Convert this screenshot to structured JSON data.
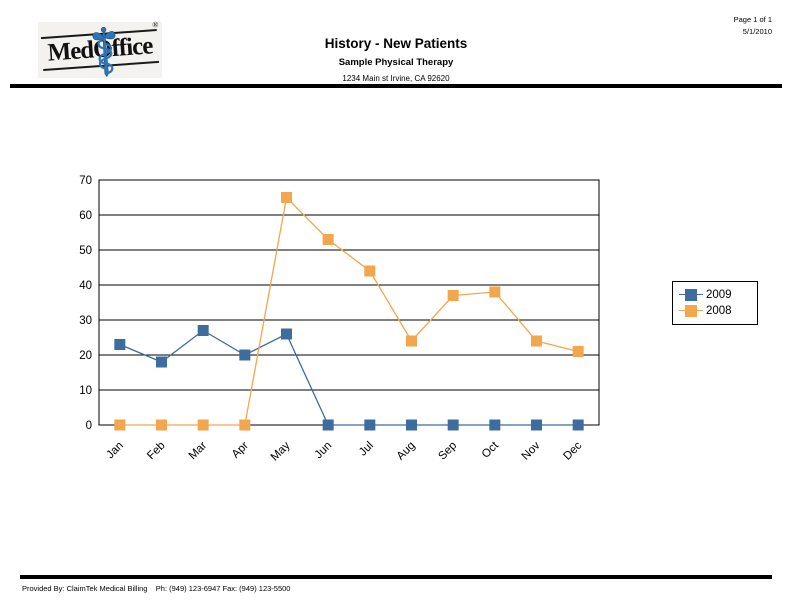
{
  "header": {
    "logo_text": "MedOffice",
    "logo_reg": "®",
    "title": "History - New Patients",
    "subtitle": "Sample Physical Therapy",
    "address": "1234 Main st Irvine, CA  92620"
  },
  "page_info": {
    "page_label": "Page 1 of 1",
    "date": "5/1/2010"
  },
  "footer": {
    "text": "Provided By: ClaimTek Medical Billing    Ph: (949) 123-6947 Fax: (949) 123-5500"
  },
  "colors": {
    "series_2009": "#3d6c9e",
    "series_2008": "#f2a64e",
    "grid": "#000000",
    "logo_blue": "#2e75b6"
  },
  "chart_data": {
    "type": "line",
    "categories": [
      "Jan",
      "Feb",
      "Mar",
      "Apr",
      "May",
      "Jun",
      "Jul",
      "Aug",
      "Sep",
      "Oct",
      "Nov",
      "Dec"
    ],
    "series": [
      {
        "name": "2009",
        "color": "#3d6c9e",
        "values": [
          23,
          18,
          27,
          20,
          26,
          0,
          0,
          0,
          0,
          0,
          0,
          0
        ]
      },
      {
        "name": "2008",
        "color": "#f2a64e",
        "values": [
          0,
          0,
          0,
          0,
          65,
          53,
          44,
          24,
          37,
          38,
          24,
          21
        ]
      }
    ],
    "title": "History - New Patients",
    "xlabel": "",
    "ylabel": "",
    "ylim": [
      0,
      70
    ],
    "ytick_step": 10,
    "grid": true,
    "marker": "square",
    "legend_position": "right"
  }
}
